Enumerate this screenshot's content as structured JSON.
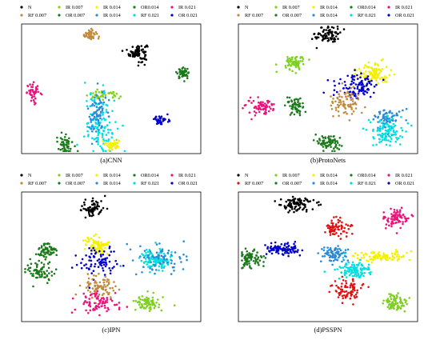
{
  "chart_data": [
    {
      "type": "scatter",
      "caption": "(a)CNN",
      "legend": [
        "N",
        "RF 0.007",
        "IR 0.007",
        "OR 0.007",
        "IR 0.014",
        "IR 0.014",
        "OR0.014",
        "RF 0.021",
        "IR 0.021",
        "OR 0.021"
      ],
      "colors": [
        "#000000",
        "#c08a3e",
        "#7fd020",
        "#1a7a1a",
        "#f5f000",
        "#2a8ad8",
        "#1a7a1a",
        "#00e0e0",
        "#e8147c",
        "#0000cc"
      ],
      "grid": false,
      "clusters": [
        {
          "series": 0,
          "cx": 0.65,
          "cy": 0.78,
          "sx": 0.025,
          "sy": 0.035,
          "n": 80
        },
        {
          "series": 1,
          "cx": 0.38,
          "cy": 0.92,
          "sx": 0.02,
          "sy": 0.02,
          "n": 40
        },
        {
          "series": 6,
          "cx": 0.9,
          "cy": 0.62,
          "sx": 0.018,
          "sy": 0.02,
          "n": 45
        },
        {
          "series": 8,
          "cx": 0.07,
          "cy": 0.47,
          "sx": 0.02,
          "sy": 0.035,
          "n": 45
        },
        {
          "series": 2,
          "cx": 0.45,
          "cy": 0.45,
          "sx": 0.05,
          "sy": 0.015,
          "n": 45
        },
        {
          "series": 9,
          "cx": 0.78,
          "cy": 0.26,
          "sx": 0.02,
          "sy": 0.02,
          "n": 40
        },
        {
          "series": 7,
          "cx": 0.44,
          "cy": 0.22,
          "sx": 0.045,
          "sy": 0.12,
          "n": 120
        },
        {
          "series": 5,
          "cx": 0.42,
          "cy": 0.3,
          "sx": 0.025,
          "sy": 0.1,
          "n": 70
        },
        {
          "series": 4,
          "cx": 0.51,
          "cy": 0.07,
          "sx": 0.02,
          "sy": 0.02,
          "n": 45
        },
        {
          "series": 3,
          "cx": 0.24,
          "cy": 0.08,
          "sx": 0.025,
          "sy": 0.04,
          "n": 50
        }
      ]
    },
    {
      "type": "scatter",
      "caption": "(b)ProtoNets",
      "legend": [
        "N",
        "RF 0.007",
        "IR 0.007",
        "OR 0.007",
        "IR 0.014",
        "IR 0.014",
        "OR0.014",
        "RF 0.021",
        "IR 0.021",
        "OR 0.021"
      ],
      "colors": [
        "#000000",
        "#c08a3e",
        "#7fd020",
        "#1a7a1a",
        "#f5f000",
        "#2a8ad8",
        "#1a7a1a",
        "#00e0e0",
        "#e8147c",
        "#0000cc"
      ],
      "grid": false,
      "clusters": [
        {
          "series": 0,
          "cx": 0.5,
          "cy": 0.92,
          "sx": 0.035,
          "sy": 0.035,
          "n": 80
        },
        {
          "series": 2,
          "cx": 0.31,
          "cy": 0.7,
          "sx": 0.03,
          "sy": 0.03,
          "n": 70
        },
        {
          "series": 4,
          "cx": 0.75,
          "cy": 0.62,
          "sx": 0.045,
          "sy": 0.04,
          "n": 110
        },
        {
          "series": 9,
          "cx": 0.66,
          "cy": 0.52,
          "sx": 0.06,
          "sy": 0.05,
          "n": 100
        },
        {
          "series": 1,
          "cx": 0.6,
          "cy": 0.4,
          "sx": 0.045,
          "sy": 0.045,
          "n": 80
        },
        {
          "series": 6,
          "cx": 0.31,
          "cy": 0.37,
          "sx": 0.025,
          "sy": 0.035,
          "n": 60
        },
        {
          "series": 8,
          "cx": 0.12,
          "cy": 0.36,
          "sx": 0.04,
          "sy": 0.03,
          "n": 70
        },
        {
          "series": 5,
          "cx": 0.83,
          "cy": 0.26,
          "sx": 0.04,
          "sy": 0.04,
          "n": 70
        },
        {
          "series": 7,
          "cx": 0.82,
          "cy": 0.17,
          "sx": 0.05,
          "sy": 0.05,
          "n": 100
        },
        {
          "series": 3,
          "cx": 0.5,
          "cy": 0.09,
          "sx": 0.035,
          "sy": 0.03,
          "n": 70
        }
      ]
    },
    {
      "type": "scatter",
      "caption": "(c)IPN",
      "legend": [
        "N",
        "RF 0.007",
        "IR 0.007",
        "OR 0.007",
        "IR 0.014",
        "IR 0.014",
        "OR0.014",
        "RF 0.021",
        "IR 0.021",
        "OR 0.021"
      ],
      "colors": [
        "#000000",
        "#c08a3e",
        "#7fd020",
        "#1a7a1a",
        "#f5f000",
        "#2a8ad8",
        "#1a7a1a",
        "#00e0e0",
        "#e8147c",
        "#0000cc"
      ],
      "grid": false,
      "clusters": [
        {
          "series": 0,
          "cx": 0.4,
          "cy": 0.88,
          "sx": 0.035,
          "sy": 0.035,
          "n": 70
        },
        {
          "series": 3,
          "cx": 0.14,
          "cy": 0.54,
          "sx": 0.025,
          "sy": 0.035,
          "n": 60
        },
        {
          "series": 4,
          "cx": 0.42,
          "cy": 0.58,
          "sx": 0.035,
          "sy": 0.035,
          "n": 90
        },
        {
          "series": 9,
          "cx": 0.44,
          "cy": 0.46,
          "sx": 0.06,
          "sy": 0.06,
          "n": 80
        },
        {
          "series": 7,
          "cx": 0.75,
          "cy": 0.48,
          "sx": 0.04,
          "sy": 0.04,
          "n": 120
        },
        {
          "series": 5,
          "cx": 0.76,
          "cy": 0.48,
          "sx": 0.08,
          "sy": 0.06,
          "n": 70
        },
        {
          "series": 6,
          "cx": 0.1,
          "cy": 0.38,
          "sx": 0.04,
          "sy": 0.04,
          "n": 70
        },
        {
          "series": 1,
          "cx": 0.42,
          "cy": 0.28,
          "sx": 0.05,
          "sy": 0.04,
          "n": 80
        },
        {
          "series": 8,
          "cx": 0.42,
          "cy": 0.14,
          "sx": 0.06,
          "sy": 0.04,
          "n": 80
        },
        {
          "series": 2,
          "cx": 0.71,
          "cy": 0.14,
          "sx": 0.035,
          "sy": 0.035,
          "n": 80
        }
      ]
    },
    {
      "type": "scatter",
      "caption": "(d)PSSPN",
      "legend": [
        "N",
        "RF 0.007",
        "IR 0.007",
        "OR 0.007",
        "IR 0.014",
        "IR 0.014",
        "OR0.014",
        "RF 0.021",
        "IR 0.021",
        "OR 0.021"
      ],
      "colors": [
        "#000000",
        "#e21010",
        "#7fd020",
        "#1a7a1a",
        "#f5f000",
        "#2a8ad8",
        "#1a7a1a",
        "#00e0e0",
        "#e8147c",
        "#0000cc"
      ],
      "grid": false,
      "clusters": [
        {
          "series": 0,
          "cx": 0.32,
          "cy": 0.9,
          "sx": 0.05,
          "sy": 0.03,
          "n": 90
        },
        {
          "series": 8,
          "cx": 0.88,
          "cy": 0.8,
          "sx": 0.035,
          "sy": 0.035,
          "n": 80
        },
        {
          "series": 1,
          "cx": 0.55,
          "cy": 0.72,
          "sx": 0.035,
          "sy": 0.035,
          "n": 70
        },
        {
          "series": 9,
          "cx": 0.25,
          "cy": 0.56,
          "sx": 0.05,
          "sy": 0.025,
          "n": 90
        },
        {
          "series": 6,
          "cx": 0.07,
          "cy": 0.48,
          "sx": 0.035,
          "sy": 0.035,
          "n": 80
        },
        {
          "series": 5,
          "cx": 0.53,
          "cy": 0.52,
          "sx": 0.035,
          "sy": 0.03,
          "n": 80
        },
        {
          "series": 4,
          "cx": 0.8,
          "cy": 0.5,
          "sx": 0.07,
          "sy": 0.02,
          "n": 90
        },
        {
          "series": 7,
          "cx": 0.64,
          "cy": 0.4,
          "sx": 0.05,
          "sy": 0.04,
          "n": 100
        },
        {
          "series": 1,
          "cx": 0.6,
          "cy": 0.24,
          "sx": 0.045,
          "sy": 0.04,
          "n": 80
        },
        {
          "series": 2,
          "cx": 0.88,
          "cy": 0.14,
          "sx": 0.035,
          "sy": 0.035,
          "n": 80
        }
      ]
    }
  ]
}
